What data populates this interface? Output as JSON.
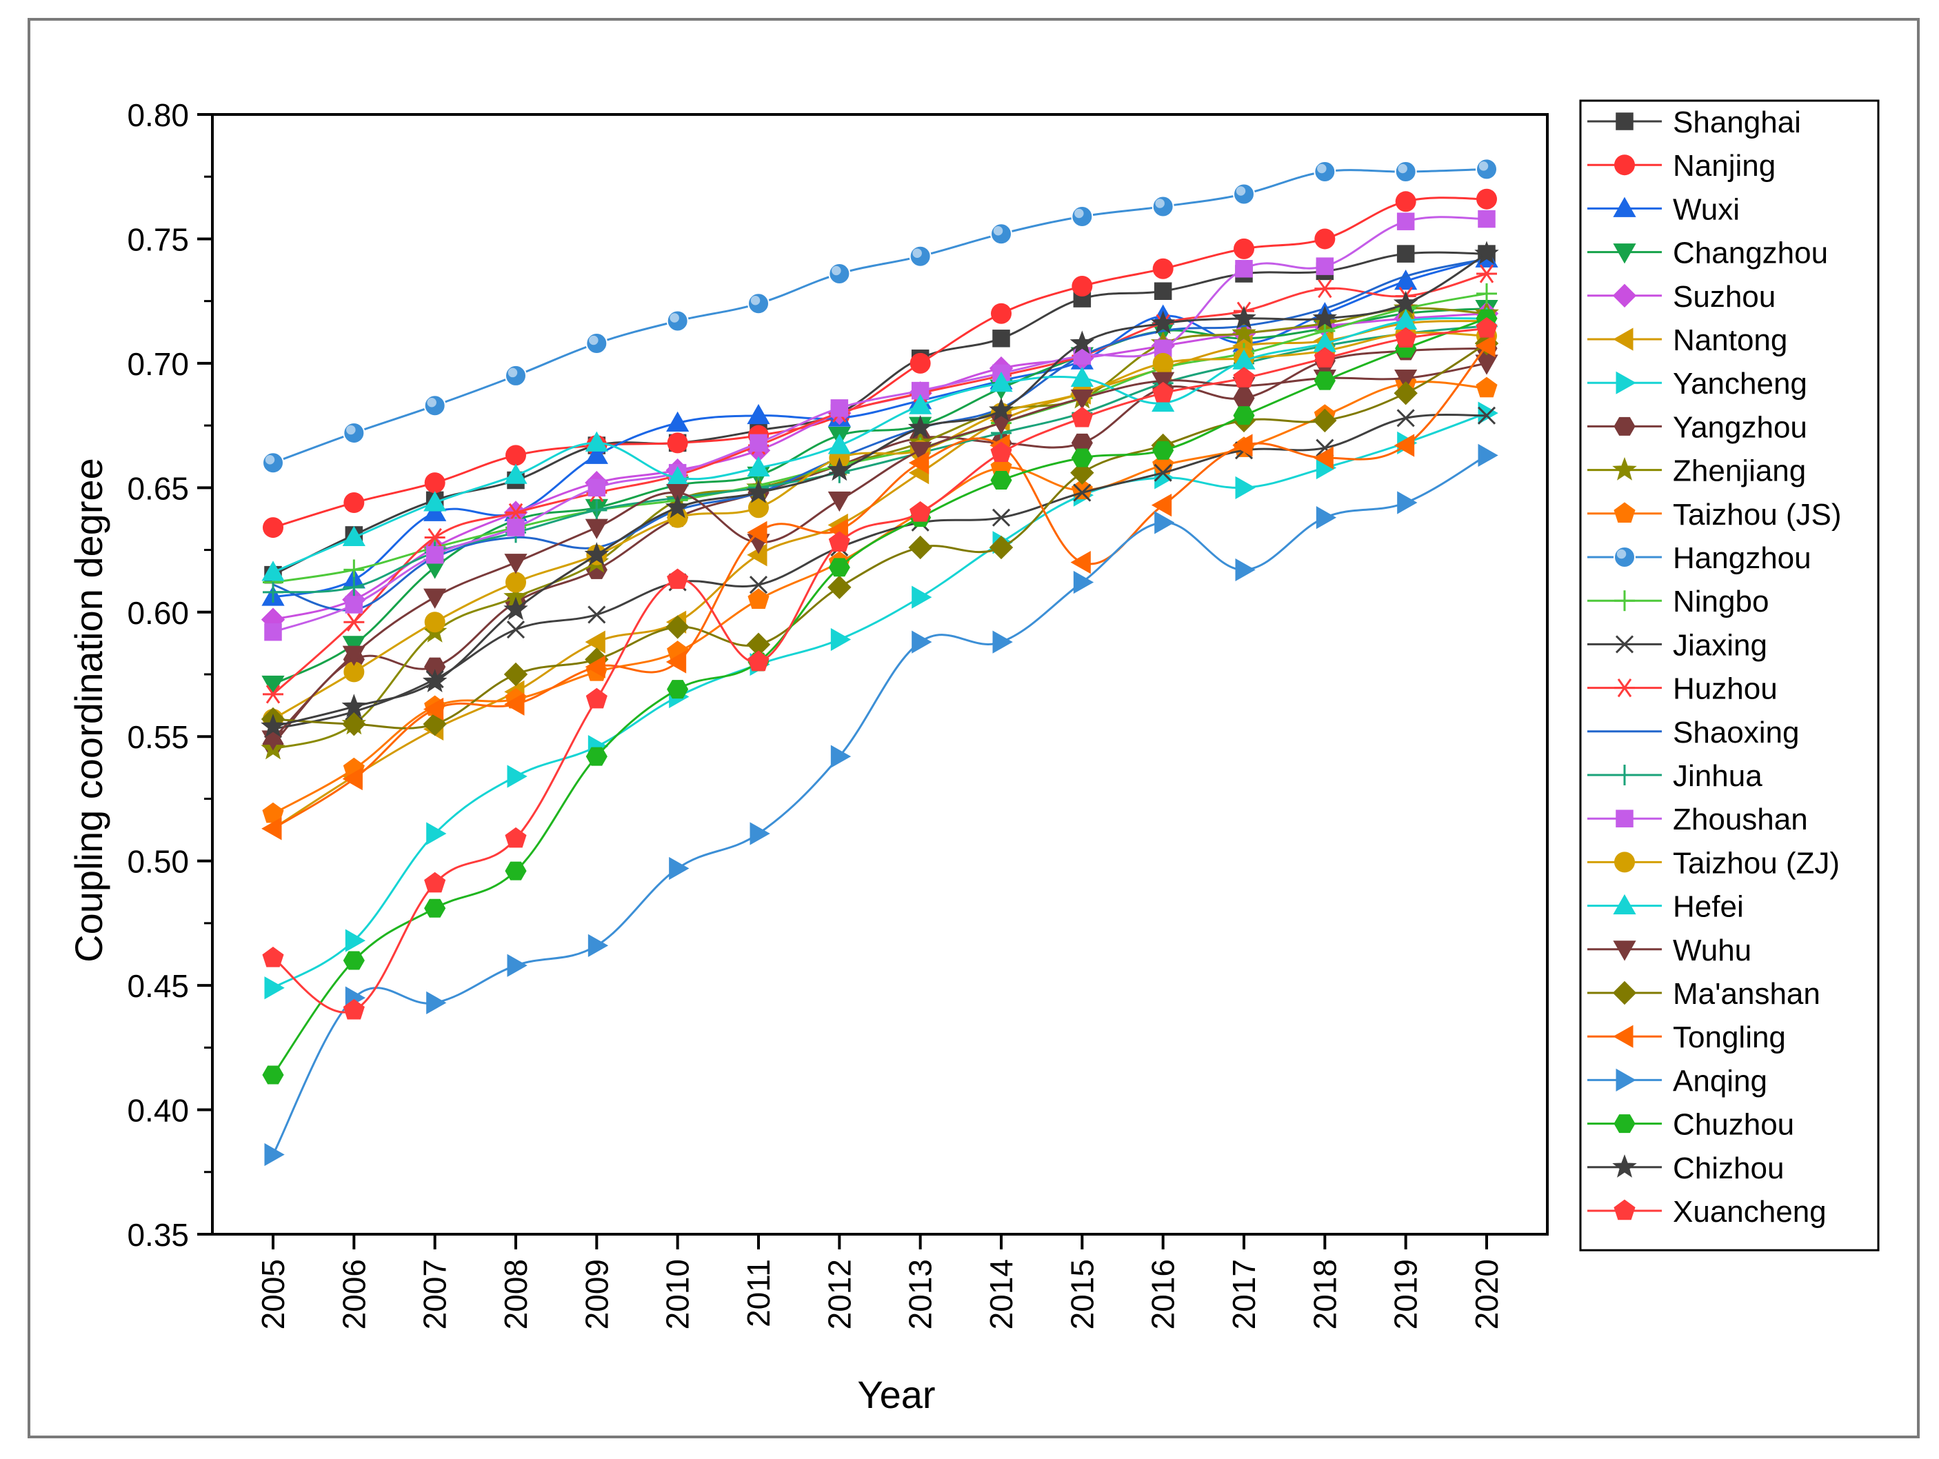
{
  "chart_data": {
    "type": "line",
    "title": "",
    "xlabel": "Year",
    "ylabel": "Coupling coordination degree",
    "ylim": [
      0.35,
      0.8
    ],
    "ytick_labels": [
      "0.35",
      "0.40",
      "0.45",
      "0.50",
      "0.55",
      "0.60",
      "0.65",
      "0.70",
      "0.75",
      "0.80"
    ],
    "categories": [
      "2005",
      "2006",
      "2007",
      "2008",
      "2009",
      "2010",
      "2011",
      "2012",
      "2013",
      "2014",
      "2015",
      "2016",
      "2017",
      "2018",
      "2019",
      "2020"
    ],
    "legend_position": "right",
    "series": [
      {
        "name": "Shanghai",
        "color": "#3f3f3f",
        "marker": "square",
        "values": [
          0.615,
          0.631,
          0.645,
          0.653,
          0.667,
          0.668,
          0.673,
          0.68,
          0.702,
          0.71,
          0.726,
          0.729,
          0.736,
          0.737,
          0.744,
          0.744
        ]
      },
      {
        "name": "Nanjing",
        "color": "#ff3333",
        "marker": "circle",
        "values": [
          0.634,
          0.644,
          0.652,
          0.663,
          0.667,
          0.668,
          0.671,
          0.679,
          0.7,
          0.72,
          0.731,
          0.738,
          0.746,
          0.75,
          0.765,
          0.766
        ]
      },
      {
        "name": "Wuxi",
        "color": "#1a66e6",
        "marker": "triangle-up",
        "values": [
          0.606,
          0.613,
          0.64,
          0.64,
          0.663,
          0.676,
          0.679,
          0.678,
          0.685,
          0.693,
          0.701,
          0.719,
          0.708,
          0.72,
          0.733,
          0.742
        ]
      },
      {
        "name": "Changzhou",
        "color": "#16a34a",
        "marker": "triangle-down",
        "values": [
          0.571,
          0.587,
          0.618,
          0.637,
          0.642,
          0.651,
          0.655,
          0.671,
          0.675,
          0.69,
          0.703,
          0.713,
          0.71,
          0.714,
          0.72,
          0.722
        ]
      },
      {
        "name": "Suzhou",
        "color": "#c94fe0",
        "marker": "diamond",
        "values": [
          0.597,
          0.605,
          0.626,
          0.64,
          0.652,
          0.657,
          0.665,
          0.68,
          0.688,
          0.698,
          0.702,
          0.707,
          0.712,
          0.715,
          0.718,
          0.72
        ]
      },
      {
        "name": "Nantong",
        "color": "#d49a00",
        "marker": "triangle-left",
        "values": [
          0.513,
          0.534,
          0.553,
          0.568,
          0.588,
          0.596,
          0.623,
          0.635,
          0.656,
          0.677,
          0.688,
          0.698,
          0.707,
          0.709,
          0.716,
          0.717
        ]
      },
      {
        "name": "Yancheng",
        "color": "#16d4d4",
        "marker": "triangle-right",
        "values": [
          0.449,
          0.468,
          0.511,
          0.534,
          0.546,
          0.566,
          0.579,
          0.589,
          0.606,
          0.628,
          0.647,
          0.654,
          0.65,
          0.658,
          0.668,
          0.68
        ]
      },
      {
        "name": "Yangzhou",
        "color": "#7a3a3a",
        "marker": "hexagon",
        "values": [
          0.547,
          0.581,
          0.578,
          0.604,
          0.617,
          0.638,
          0.648,
          0.659,
          0.67,
          0.668,
          0.668,
          0.69,
          0.686,
          0.701,
          0.705,
          0.706
        ]
      },
      {
        "name": "Zhenjiang",
        "color": "#8a8a00",
        "marker": "star",
        "values": [
          0.545,
          0.555,
          0.592,
          0.606,
          0.62,
          0.645,
          0.65,
          0.659,
          0.668,
          0.681,
          0.686,
          0.708,
          0.712,
          0.716,
          0.722,
          0.72
        ]
      },
      {
        "name": "Taizhou (JS)",
        "color": "#ff7700",
        "marker": "pentagon",
        "values": [
          0.519,
          0.537,
          0.562,
          0.565,
          0.576,
          0.584,
          0.605,
          0.62,
          0.64,
          0.658,
          0.649,
          0.659,
          0.666,
          0.679,
          0.692,
          0.69
        ]
      },
      {
        "name": "Hangzhou",
        "color": "#3c8fd6",
        "marker": "sphere",
        "values": [
          0.66,
          0.672,
          0.683,
          0.695,
          0.708,
          0.717,
          0.724,
          0.736,
          0.743,
          0.752,
          0.759,
          0.763,
          0.768,
          0.777,
          0.777,
          0.778
        ]
      },
      {
        "name": "Ningbo",
        "color": "#4ec93a",
        "marker": "plus",
        "values": [
          0.612,
          0.617,
          0.626,
          0.634,
          0.641,
          0.645,
          0.651,
          0.659,
          0.666,
          0.676,
          0.686,
          0.698,
          0.704,
          0.713,
          0.722,
          0.728
        ]
      },
      {
        "name": "Jiaxing",
        "color": "#404040",
        "marker": "x",
        "values": [
          0.553,
          0.56,
          0.573,
          0.593,
          0.599,
          0.612,
          0.611,
          0.626,
          0.636,
          0.638,
          0.648,
          0.656,
          0.665,
          0.666,
          0.678,
          0.679
        ]
      },
      {
        "name": "Huzhou",
        "color": "#ff3b3b",
        "marker": "asterisk",
        "values": [
          0.567,
          0.596,
          0.63,
          0.64,
          0.648,
          0.655,
          0.667,
          0.68,
          0.688,
          0.695,
          0.703,
          0.716,
          0.721,
          0.73,
          0.727,
          0.736
        ]
      },
      {
        "name": "Shaoxing",
        "color": "#2266cc",
        "marker": "none",
        "values": [
          0.611,
          0.601,
          0.622,
          0.63,
          0.626,
          0.641,
          0.648,
          0.662,
          0.674,
          0.682,
          0.703,
          0.713,
          0.715,
          0.722,
          0.735,
          0.742
        ]
      },
      {
        "name": "Jinhua",
        "color": "#1aa37a",
        "marker": "plus",
        "values": [
          0.608,
          0.61,
          0.624,
          0.632,
          0.641,
          0.646,
          0.65,
          0.656,
          0.664,
          0.672,
          0.68,
          0.692,
          0.7,
          0.707,
          0.712,
          0.715
        ]
      },
      {
        "name": "Zhoushan",
        "color": "#c45ce8",
        "marker": "square",
        "values": [
          0.592,
          0.603,
          0.623,
          0.634,
          0.65,
          0.656,
          0.668,
          0.682,
          0.689,
          0.696,
          0.703,
          0.706,
          0.738,
          0.739,
          0.757,
          0.758
        ]
      },
      {
        "name": "Taizhou (ZJ)",
        "color": "#d4a000",
        "marker": "circle",
        "values": [
          0.557,
          0.576,
          0.596,
          0.612,
          0.623,
          0.638,
          0.642,
          0.662,
          0.665,
          0.68,
          0.688,
          0.7,
          0.702,
          0.705,
          0.712,
          0.711
        ]
      },
      {
        "name": "Hefei",
        "color": "#16d4d4",
        "marker": "triangle-up",
        "values": [
          0.616,
          0.63,
          0.644,
          0.655,
          0.668,
          0.654,
          0.658,
          0.667,
          0.683,
          0.692,
          0.694,
          0.684,
          0.701,
          0.708,
          0.717,
          0.718
        ]
      },
      {
        "name": "Wuhu",
        "color": "#7a3a3a",
        "marker": "triangle-down",
        "values": [
          0.549,
          0.583,
          0.606,
          0.62,
          0.634,
          0.648,
          0.628,
          0.645,
          0.665,
          0.676,
          0.686,
          0.693,
          0.691,
          0.694,
          0.694,
          0.7
        ]
      },
      {
        "name": "Ma'anshan",
        "color": "#807a00",
        "marker": "diamond",
        "values": [
          0.557,
          0.555,
          0.555,
          0.575,
          0.581,
          0.594,
          0.587,
          0.61,
          0.626,
          0.626,
          0.656,
          0.667,
          0.677,
          0.677,
          0.688,
          0.708
        ]
      },
      {
        "name": "Tongling",
        "color": "#ff6600",
        "marker": "triangle-left",
        "values": [
          0.513,
          0.533,
          0.561,
          0.563,
          0.578,
          0.58,
          0.632,
          0.633,
          0.66,
          0.667,
          0.62,
          0.643,
          0.667,
          0.662,
          0.667,
          0.707
        ]
      },
      {
        "name": "Anqing",
        "color": "#3c8fd6",
        "marker": "triangle-right",
        "values": [
          0.382,
          0.445,
          0.443,
          0.458,
          0.466,
          0.497,
          0.511,
          0.542,
          0.588,
          0.588,
          0.612,
          0.636,
          0.617,
          0.638,
          0.644,
          0.663
        ]
      },
      {
        "name": "Chuzhou",
        "color": "#1fb51f",
        "marker": "hexagon",
        "values": [
          0.414,
          0.46,
          0.481,
          0.496,
          0.542,
          0.569,
          0.58,
          0.618,
          0.638,
          0.653,
          0.662,
          0.665,
          0.679,
          0.693,
          0.706,
          0.718
        ]
      },
      {
        "name": "Chizhou",
        "color": "#3f3f3f",
        "marker": "star",
        "values": [
          0.554,
          0.562,
          0.572,
          0.601,
          0.623,
          0.642,
          0.648,
          0.657,
          0.674,
          0.681,
          0.708,
          0.716,
          0.718,
          0.718,
          0.724,
          0.744
        ]
      },
      {
        "name": "Xuancheng",
        "color": "#ff3b3b",
        "marker": "pentagon",
        "values": [
          0.461,
          0.44,
          0.491,
          0.509,
          0.565,
          0.613,
          0.58,
          0.628,
          0.64,
          0.664,
          0.678,
          0.688,
          0.694,
          0.702,
          0.71,
          0.714
        ]
      }
    ]
  }
}
